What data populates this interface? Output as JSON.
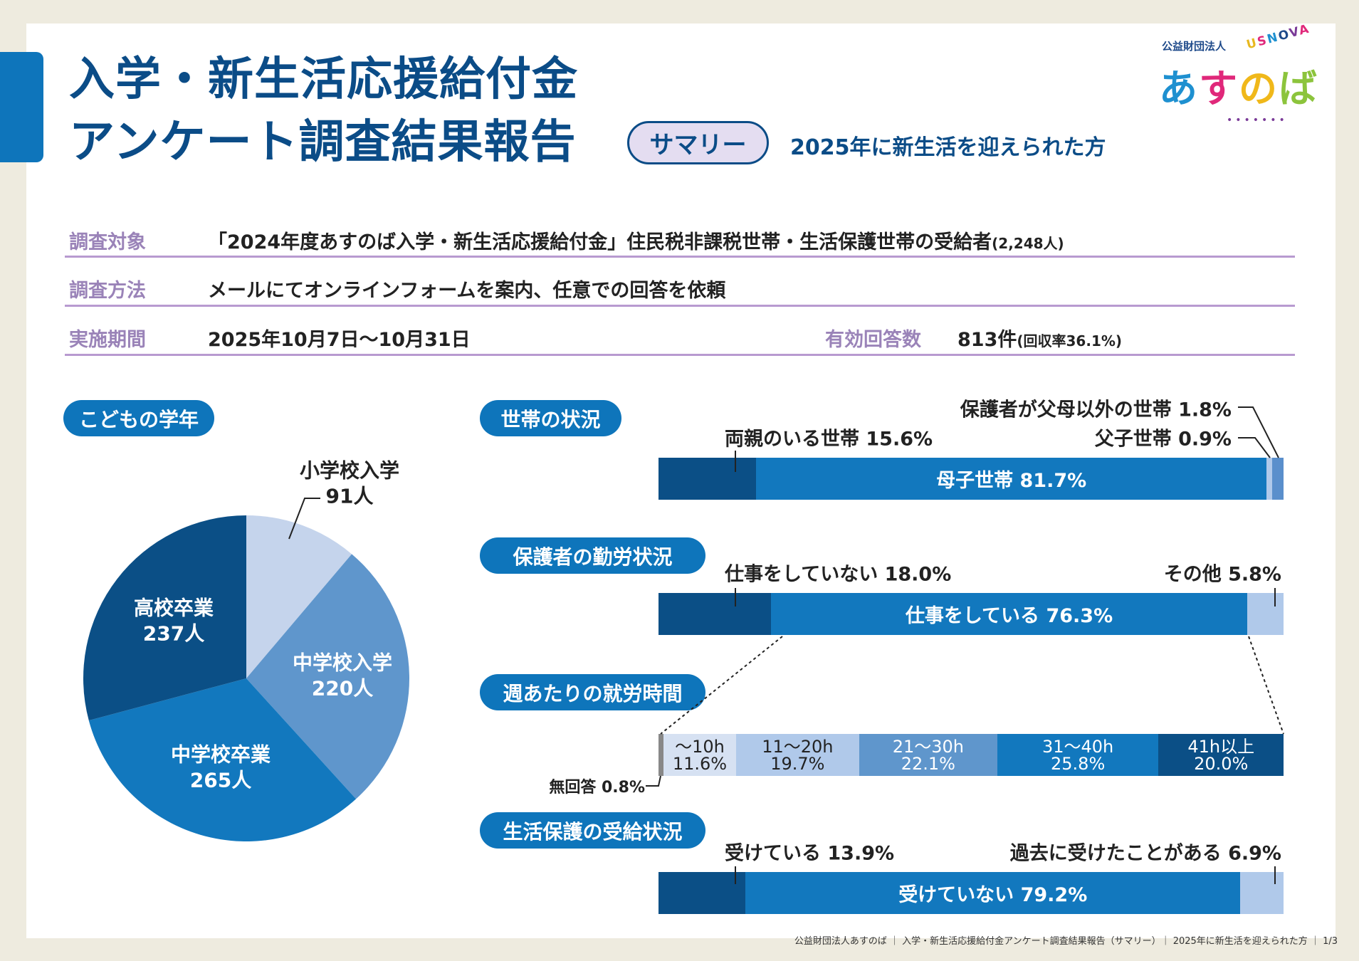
{
  "header": {
    "title_line1": "入学・新生活応援給付金",
    "title_line2": "アンケート調査結果報告",
    "summary_badge": "サマリー",
    "subtitle": "2025年に新生活を迎えられた方"
  },
  "logo": {
    "org_type": "公益財団法人",
    "name": "あすのば",
    "tagline": "USNOVA"
  },
  "info": {
    "target_label": "調査対象",
    "target_value": "「2024年度あすのば入学・新生活応援給付金」住民税非課税世帯・生活保護世帯の受給者",
    "target_count": "(2,248人)",
    "method_label": "調査方法",
    "method_value": "メールにてオンラインフォームを案内、任意での回答を依頼",
    "period_label": "実施期間",
    "period_value": "2025年10月7日〜10月31日",
    "responses_label": "有効回答数",
    "responses_value": "813件",
    "response_rate": "(回収率36.1%)"
  },
  "colors": {
    "dark": "#0b4f86",
    "mid": "#1278be",
    "medium_light": "#5f96cc",
    "light": "#b0c9ea",
    "lightest": "#d6e1f2",
    "gray": "#888888",
    "accent": "#0e75bb",
    "label_purple": "#9a83b8"
  },
  "sections": {
    "grade": "こどもの学年",
    "household": "世帯の状況",
    "work": "保護者の勤労状況",
    "hours": "週あたりの就労時間",
    "welfare": "生活保護の受給状況"
  },
  "chart_data": [
    {
      "type": "pie",
      "title": "こどもの学年",
      "categories": [
        "小学校入学",
        "中学校入学",
        "中学校卒業",
        "高校卒業"
      ],
      "values": [
        91,
        220,
        265,
        237
      ],
      "unit": "人",
      "labels": [
        "91人",
        "220人",
        "265人",
        "237人"
      ],
      "colors": [
        "#c5d4ec",
        "#5f96cc",
        "#1278be",
        "#0b4f86"
      ]
    },
    {
      "type": "bar",
      "stacked": true,
      "title": "世帯の状況",
      "categories": [
        "両親のいる世帯",
        "母子世帯",
        "父子世帯",
        "保護者が父母以外の世帯"
      ],
      "values": [
        15.6,
        81.7,
        0.9,
        1.8
      ],
      "labels": [
        "両親のいる世帯 15.6%",
        "母子世帯 81.7%",
        "父子世帯 0.9%",
        "保護者が父母以外の世帯 1.8%"
      ],
      "colors": [
        "#0b4f86",
        "#1278be",
        "#b0c9ea",
        "#5a8fcc"
      ]
    },
    {
      "type": "bar",
      "stacked": true,
      "title": "保護者の勤労状況",
      "categories": [
        "仕事をしていない",
        "仕事をしている",
        "その他"
      ],
      "values": [
        18.0,
        76.3,
        5.8
      ],
      "labels": [
        "仕事をしていない 18.0%",
        "仕事をしている 76.3%",
        "その他 5.8%"
      ],
      "colors": [
        "#0b4f86",
        "#1278be",
        "#b0c9ea"
      ]
    },
    {
      "type": "bar",
      "stacked": true,
      "title": "週あたりの就労時間",
      "categories": [
        "無回答",
        "〜10h",
        "11〜20h",
        "21〜30h",
        "31〜40h",
        "41h以上"
      ],
      "values": [
        0.8,
        11.6,
        19.7,
        22.1,
        25.8,
        20.0
      ],
      "pct_labels": [
        "無回答 0.8%",
        "11.6%",
        "19.7%",
        "22.1%",
        "25.8%",
        "20.0%"
      ],
      "colors": [
        "#888888",
        "#d6e1f2",
        "#b0c9ea",
        "#5f96cc",
        "#1278be",
        "#0b4f86"
      ],
      "text_colors": [
        "#fff",
        "#222",
        "#222",
        "#fff",
        "#fff",
        "#fff"
      ]
    },
    {
      "type": "bar",
      "stacked": true,
      "title": "生活保護の受給状況",
      "categories": [
        "受けている",
        "受けていない",
        "過去に受けたことがある"
      ],
      "values": [
        13.9,
        79.2,
        6.9
      ],
      "labels": [
        "受けている 13.9%",
        "受けていない 79.2%",
        "過去に受けたことがある 6.9%"
      ],
      "colors": [
        "#0b4f86",
        "#1278be",
        "#b0c9ea"
      ]
    }
  ],
  "footer": "公益財団法人あすのば ｜ 入学・新生活応援給付金アンケート調査結果報告（サマリー）｜ 2025年に新生活を迎えられた方 ｜ 1/3"
}
